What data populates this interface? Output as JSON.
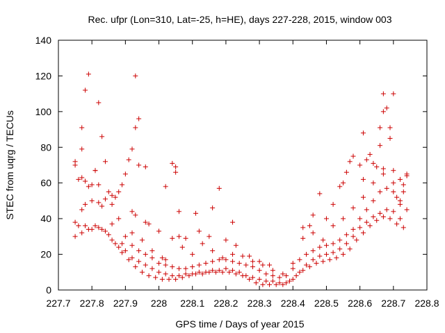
{
  "chart_data": {
    "type": "scatter",
    "title": "Rec. ufpr (Lon=310, Lat=-25, h=HE), days 227-228, 2015, window 003",
    "xlabel": "GPS time / Days of year 2015",
    "ylabel": "STEC from uqrg / TECUs",
    "xlim": [
      227.7,
      228.8
    ],
    "ylim": [
      0,
      140
    ],
    "xticks": [
      "227.7",
      "227.8",
      "227.9",
      "228",
      "228.1",
      "228.2",
      "228.3",
      "228.4",
      "228.5",
      "228.6",
      "228.7",
      "228.8"
    ],
    "yticks": [
      "0",
      "20",
      "40",
      "60",
      "80",
      "100",
      "120",
      "140"
    ],
    "grid": false,
    "legend": "none",
    "marker": "plus",
    "color": "#cc0000",
    "series": [
      {
        "points": [
          [
            227.75,
            72
          ],
          [
            227.75,
            70
          ],
          [
            227.76,
            62
          ],
          [
            227.77,
            63
          ],
          [
            227.77,
            91
          ],
          [
            227.77,
            79
          ],
          [
            227.78,
            61
          ],
          [
            227.78,
            112
          ],
          [
            227.79,
            121
          ],
          [
            227.8,
            59
          ],
          [
            227.81,
            67
          ],
          [
            227.81,
            67
          ],
          [
            227.82,
            105
          ],
          [
            227.82,
            59
          ],
          [
            227.83,
            86
          ],
          [
            227.84,
            72
          ],
          [
            227.85,
            55
          ],
          [
            227.86,
            53
          ],
          [
            227.87,
            52
          ],
          [
            227.88,
            55
          ],
          [
            227.89,
            59
          ],
          [
            227.9,
            65
          ],
          [
            227.91,
            73
          ],
          [
            227.92,
            79
          ],
          [
            227.93,
            120
          ],
          [
            227.93,
            91
          ],
          [
            227.94,
            96
          ],
          [
            227.94,
            70
          ],
          [
            227.96,
            69
          ],
          [
            228.02,
            58
          ],
          [
            228.04,
            71
          ],
          [
            228.05,
            69
          ],
          [
            228.05,
            66
          ],
          [
            228.06,
            44
          ],
          [
            228.11,
            43
          ],
          [
            228.16,
            46
          ],
          [
            228.18,
            57
          ],
          [
            228.22,
            38
          ],
          [
            227.75,
            38
          ],
          [
            227.77,
            45
          ],
          [
            227.78,
            36
          ],
          [
            227.8,
            34
          ],
          [
            227.82,
            35
          ],
          [
            227.84,
            33
          ],
          [
            227.86,
            28
          ],
          [
            227.88,
            24
          ],
          [
            227.9,
            22
          ],
          [
            227.92,
            18
          ],
          [
            227.94,
            16
          ],
          [
            227.96,
            14
          ],
          [
            227.98,
            12
          ],
          [
            228.0,
            10
          ],
          [
            228.02,
            9
          ],
          [
            228.04,
            8
          ],
          [
            228.06,
            8
          ],
          [
            228.08,
            9
          ],
          [
            228.1,
            9
          ],
          [
            228.12,
            10
          ],
          [
            228.14,
            10
          ],
          [
            228.16,
            11
          ],
          [
            228.18,
            11
          ],
          [
            228.2,
            12
          ],
          [
            228.22,
            11
          ],
          [
            228.24,
            10
          ],
          [
            228.26,
            8
          ],
          [
            228.28,
            7
          ],
          [
            228.3,
            6
          ],
          [
            228.32,
            5
          ],
          [
            228.34,
            5
          ],
          [
            228.36,
            4
          ],
          [
            228.38,
            4
          ],
          [
            228.4,
            6
          ],
          [
            228.42,
            10
          ],
          [
            228.44,
            14
          ],
          [
            228.46,
            17
          ],
          [
            228.48,
            19
          ],
          [
            228.5,
            20
          ],
          [
            228.52,
            21
          ],
          [
            228.54,
            23
          ],
          [
            228.56,
            26
          ],
          [
            228.58,
            30
          ],
          [
            228.6,
            35
          ],
          [
            228.62,
            38
          ],
          [
            228.64,
            41
          ],
          [
            228.66,
            43
          ],
          [
            228.68,
            45
          ],
          [
            228.7,
            44
          ],
          [
            228.72,
            40
          ],
          [
            228.73,
            35
          ],
          [
            227.75,
            30
          ],
          [
            227.77,
            32
          ],
          [
            227.79,
            34
          ],
          [
            227.81,
            36
          ],
          [
            227.83,
            34
          ],
          [
            227.85,
            31
          ],
          [
            227.87,
            26
          ],
          [
            227.89,
            21
          ],
          [
            227.91,
            17
          ],
          [
            227.93,
            13
          ],
          [
            227.95,
            10
          ],
          [
            227.97,
            8
          ],
          [
            227.99,
            7
          ],
          [
            228.01,
            6
          ],
          [
            228.03,
            6
          ],
          [
            228.05,
            6
          ],
          [
            228.07,
            7
          ],
          [
            228.09,
            8
          ],
          [
            228.11,
            9
          ],
          [
            228.13,
            9
          ],
          [
            228.15,
            10
          ],
          [
            228.17,
            10
          ],
          [
            228.19,
            10
          ],
          [
            228.21,
            10
          ],
          [
            228.23,
            9
          ],
          [
            228.25,
            8
          ],
          [
            228.27,
            6
          ],
          [
            228.29,
            4
          ],
          [
            228.31,
            3
          ],
          [
            228.33,
            3
          ],
          [
            228.35,
            3
          ],
          [
            228.37,
            3
          ],
          [
            228.39,
            5
          ],
          [
            228.41,
            8
          ],
          [
            228.43,
            11
          ],
          [
            228.45,
            13
          ],
          [
            228.47,
            15
          ],
          [
            228.49,
            16
          ],
          [
            228.51,
            17
          ],
          [
            228.53,
            18
          ],
          [
            228.55,
            20
          ],
          [
            228.57,
            23
          ],
          [
            228.59,
            28
          ],
          [
            228.61,
            32
          ],
          [
            228.63,
            36
          ],
          [
            228.65,
            39
          ],
          [
            228.67,
            41
          ],
          [
            228.69,
            40
          ],
          [
            228.71,
            37
          ],
          [
            227.76,
            36
          ],
          [
            227.78,
            48
          ],
          [
            227.8,
            50
          ],
          [
            227.82,
            49
          ],
          [
            227.84,
            51
          ],
          [
            227.86,
            48
          ],
          [
            227.88,
            40
          ],
          [
            227.9,
            30
          ],
          [
            227.92,
            25
          ],
          [
            227.94,
            22
          ],
          [
            227.96,
            20
          ],
          [
            227.98,
            18
          ],
          [
            228.0,
            15
          ],
          [
            228.02,
            14
          ],
          [
            228.04,
            13
          ],
          [
            228.06,
            12
          ],
          [
            228.08,
            12
          ],
          [
            228.1,
            13
          ],
          [
            228.12,
            14
          ],
          [
            228.14,
            15
          ],
          [
            228.16,
            16
          ],
          [
            228.18,
            17
          ],
          [
            228.2,
            17
          ],
          [
            228.22,
            16
          ],
          [
            228.24,
            15
          ],
          [
            228.26,
            14
          ],
          [
            228.28,
            13
          ],
          [
            228.3,
            11
          ],
          [
            228.32,
            9
          ],
          [
            228.34,
            8
          ],
          [
            228.36,
            7
          ],
          [
            228.38,
            8
          ],
          [
            228.4,
            12
          ],
          [
            228.42,
            17
          ],
          [
            228.44,
            20
          ],
          [
            228.46,
            22
          ],
          [
            228.48,
            24
          ],
          [
            228.5,
            25
          ],
          [
            228.52,
            26
          ],
          [
            228.54,
            28
          ],
          [
            228.56,
            31
          ],
          [
            228.58,
            34
          ],
          [
            228.6,
            40
          ],
          [
            228.62,
            45
          ],
          [
            228.64,
            50
          ],
          [
            228.66,
            55
          ],
          [
            228.68,
            57
          ],
          [
            228.7,
            55
          ],
          [
            228.72,
            50
          ],
          [
            228.74,
            45
          ],
          [
            227.79,
            58
          ],
          [
            227.83,
            47
          ],
          [
            227.86,
            37
          ],
          [
            227.89,
            26
          ],
          [
            227.92,
            32
          ],
          [
            227.95,
            28
          ],
          [
            227.98,
            22
          ],
          [
            228.01,
            18
          ],
          [
            228.04,
            29
          ],
          [
            228.07,
            24
          ],
          [
            228.1,
            20
          ],
          [
            228.13,
            26
          ],
          [
            228.16,
            22
          ],
          [
            228.19,
            18
          ],
          [
            228.22,
            20
          ],
          [
            228.25,
            19
          ],
          [
            228.28,
            16
          ],
          [
            228.31,
            14
          ],
          [
            228.34,
            11
          ],
          [
            228.37,
            9
          ],
          [
            228.4,
            15
          ],
          [
            228.43,
            29
          ],
          [
            228.46,
            32
          ],
          [
            228.49,
            28
          ],
          [
            228.52,
            36
          ],
          [
            228.55,
            40
          ],
          [
            228.58,
            46
          ],
          [
            228.61,
            52
          ],
          [
            228.64,
            60
          ],
          [
            228.67,
            65
          ],
          [
            228.7,
            60
          ],
          [
            228.73,
            55
          ],
          [
            227.92,
            44
          ],
          [
            227.93,
            42
          ],
          [
            227.96,
            38
          ],
          [
            227.97,
            37
          ],
          [
            228.0,
            33
          ],
          [
            228.02,
            17
          ],
          [
            228.06,
            30
          ],
          [
            228.08,
            29
          ],
          [
            228.12,
            33
          ],
          [
            228.15,
            30
          ],
          [
            228.2,
            28
          ],
          [
            228.23,
            25
          ],
          [
            228.27,
            19
          ],
          [
            228.3,
            16
          ],
          [
            228.33,
            14
          ],
          [
            228.43,
            35
          ],
          [
            228.45,
            36
          ],
          [
            228.46,
            42
          ],
          [
            228.48,
            54
          ],
          [
            228.5,
            40
          ],
          [
            228.52,
            48
          ],
          [
            228.54,
            58
          ],
          [
            228.55,
            60
          ],
          [
            228.56,
            66
          ],
          [
            228.57,
            72
          ],
          [
            228.58,
            75
          ],
          [
            228.6,
            70
          ],
          [
            228.61,
            62
          ],
          [
            228.62,
            73
          ],
          [
            228.63,
            76
          ],
          [
            228.64,
            71
          ],
          [
            228.65,
            69
          ],
          [
            228.66,
            81
          ],
          [
            228.66,
            91
          ],
          [
            228.67,
            68
          ],
          [
            228.67,
            100
          ],
          [
            228.67,
            110
          ],
          [
            228.68,
            102
          ],
          [
            228.69,
            91
          ],
          [
            228.69,
            85
          ],
          [
            228.7,
            110
          ],
          [
            228.7,
            67
          ],
          [
            228.72,
            62
          ],
          [
            228.73,
            59
          ],
          [
            228.74,
            64
          ],
          [
            228.74,
            65
          ],
          [
            228.61,
            88
          ],
          [
            228.72,
            48
          ],
          [
            228.71,
            52
          ]
        ]
      }
    ]
  }
}
